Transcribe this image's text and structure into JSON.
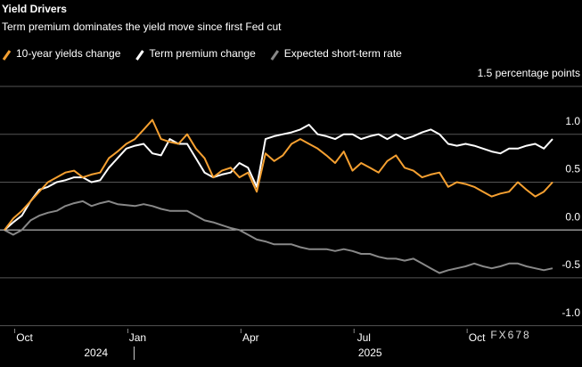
{
  "chart_data": {
    "type": "line",
    "title": "Yield Drivers",
    "subtitle": "Term premium dominates the yield move since first Fed cut",
    "categories": [
      null,
      null,
      "Oct",
      null,
      null,
      null,
      null,
      null,
      null,
      null,
      null,
      null,
      null,
      null,
      null,
      "Jan",
      null,
      null,
      null,
      null,
      null,
      null,
      null,
      null,
      null,
      null,
      null,
      null,
      "Apr",
      null,
      null,
      null,
      null,
      null,
      null,
      null,
      null,
      null,
      null,
      null,
      null,
      "Jul",
      null,
      null,
      null,
      null,
      null,
      null,
      null,
      null,
      null,
      null,
      null,
      null,
      "Oct",
      null,
      null,
      null,
      null,
      null,
      null,
      null,
      null,
      null
    ],
    "years": [
      "2024",
      "2025"
    ],
    "series": [
      {
        "name": "10-year yields change",
        "color": "#f5a031",
        "values": [
          0,
          0.12,
          0.2,
          0.3,
          0.4,
          0.5,
          0.55,
          0.6,
          0.62,
          0.55,
          0.58,
          0.6,
          0.75,
          0.82,
          0.9,
          0.95,
          1.05,
          1.15,
          0.95,
          0.92,
          0.9,
          1.0,
          0.85,
          0.75,
          0.55,
          0.62,
          0.65,
          0.55,
          0.6,
          0.4,
          0.8,
          0.72,
          0.78,
          0.9,
          0.95,
          0.9,
          0.85,
          0.78,
          0.7,
          0.82,
          0.62,
          0.7,
          0.65,
          0.6,
          0.72,
          0.78,
          0.65,
          0.62,
          0.55,
          0.58,
          0.6,
          0.45,
          0.5,
          0.48,
          0.45,
          0.4,
          0.35,
          0.38,
          0.4,
          0.5,
          0.42,
          0.35,
          0.4,
          0.5
        ]
      },
      {
        "name": "Term premium change",
        "color": "#ffffff",
        "values": [
          0,
          0.08,
          0.15,
          0.3,
          0.42,
          0.45,
          0.5,
          0.52,
          0.55,
          0.55,
          0.5,
          0.52,
          0.65,
          0.75,
          0.85,
          0.88,
          0.9,
          0.8,
          0.78,
          0.95,
          0.9,
          0.9,
          0.75,
          0.6,
          0.55,
          0.58,
          0.6,
          0.7,
          0.65,
          0.45,
          0.95,
          0.98,
          1.0,
          1.02,
          1.05,
          1.1,
          1.0,
          0.98,
          0.95,
          1.0,
          1.0,
          0.95,
          0.98,
          1.0,
          0.95,
          1.0,
          0.95,
          0.98,
          1.02,
          1.05,
          1.0,
          0.9,
          0.88,
          0.9,
          0.88,
          0.85,
          0.82,
          0.8,
          0.85,
          0.85,
          0.88,
          0.9,
          0.85,
          0.95
        ]
      },
      {
        "name": "Expected short-term rate",
        "color": "#888888",
        "values": [
          0,
          -0.05,
          0,
          0.1,
          0.15,
          0.18,
          0.2,
          0.25,
          0.28,
          0.3,
          0.25,
          0.28,
          0.3,
          0.27,
          0.26,
          0.25,
          0.27,
          0.25,
          0.22,
          0.2,
          0.2,
          0.2,
          0.15,
          0.1,
          0.08,
          0.05,
          0.02,
          0,
          -0.05,
          -0.1,
          -0.12,
          -0.15,
          -0.15,
          -0.15,
          -0.18,
          -0.2,
          -0.2,
          -0.2,
          -0.22,
          -0.2,
          -0.22,
          -0.25,
          -0.25,
          -0.28,
          -0.3,
          -0.3,
          -0.32,
          -0.3,
          -0.35,
          -0.4,
          -0.45,
          -0.42,
          -0.4,
          -0.38,
          -0.35,
          -0.38,
          -0.4,
          -0.38,
          -0.35,
          -0.35,
          -0.38,
          -0.4,
          -0.42,
          -0.4
        ]
      }
    ],
    "ylim": [
      -1.05,
      1.5
    ],
    "yticks": [
      {
        "value": 1.5,
        "label": "1.5 percentage points"
      },
      {
        "value": 1.0,
        "label": "1.0"
      },
      {
        "value": 0.5,
        "label": "0.5"
      },
      {
        "value": 0,
        "label": "0.0"
      },
      {
        "value": -0.5,
        "label": "-0.5"
      },
      {
        "value": -1.0,
        "label": "-1.0"
      }
    ],
    "grid": true,
    "watermark": "FX678"
  }
}
